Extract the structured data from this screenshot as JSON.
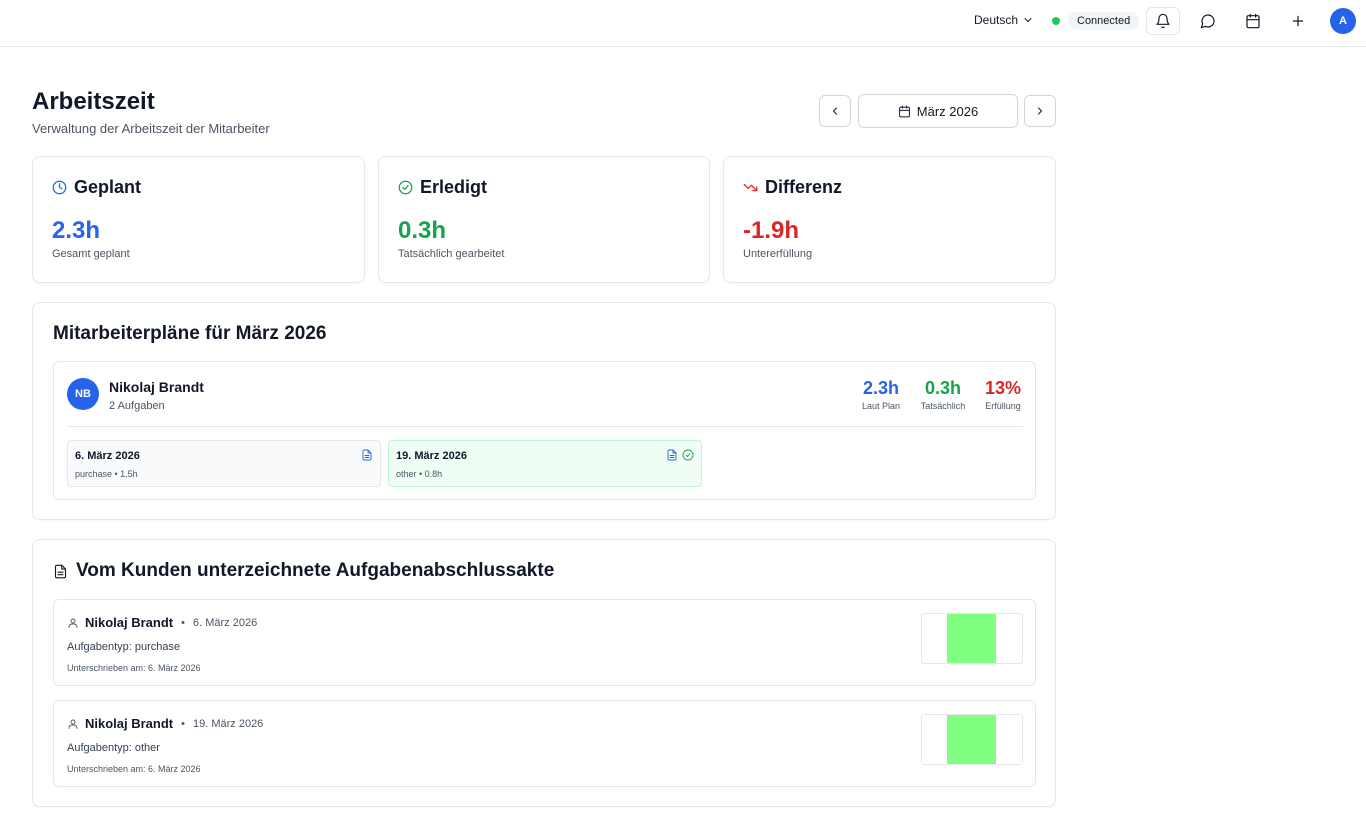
{
  "topbar": {
    "language": "Deutsch",
    "connection_status": "Connected",
    "user_initial": "A"
  },
  "header": {
    "title": "Arbeitszeit",
    "subtitle": "Verwaltung der Arbeitszeit der Mitarbeiter",
    "month": "März 2026"
  },
  "stats": [
    {
      "icon": "clock-icon",
      "title": "Geplant",
      "value": "2.3h",
      "label": "Gesamt geplant",
      "color": "#2563eb"
    },
    {
      "icon": "check-circle-icon",
      "title": "Erledigt",
      "value": "0.3h",
      "label": "Tatsächlich gearbeitet",
      "color": "#16a34a"
    },
    {
      "icon": "trending-down-icon",
      "title": "Differenz",
      "value": "-1.9h",
      "label": "Untererfüllung",
      "color": "#dc2626"
    }
  ],
  "plans": {
    "title": "Mitarbeiterpläne für März 2026",
    "employee": {
      "initials": "NB",
      "name": "Nikolaj Brandt",
      "tasks_count": "2 Aufgaben",
      "planned": {
        "value": "2.3h",
        "label": "Laut Plan"
      },
      "actual": {
        "value": "0.3h",
        "label": "Tatsächlich"
      },
      "fulfillment": {
        "value": "13%",
        "label": "Erfüllung"
      }
    },
    "tasks": [
      {
        "date": "6. März 2026",
        "meta": "purchase • 1.5h",
        "completed": false
      },
      {
        "date": "19. März 2026",
        "meta": "other • 0.8h",
        "completed": true
      }
    ]
  },
  "signed": {
    "title": "Vom Kunden unterzeichnete Aufgabenabschlussakte",
    "records": [
      {
        "name": "Nikolaj Brandt",
        "date": "6. März 2026",
        "type": "Aufgabentyp: purchase",
        "signed_at": "Unterschrieben am: 6. März 2026"
      },
      {
        "name": "Nikolaj Brandt",
        "date": "19. März 2026",
        "type": "Aufgabentyp: other",
        "signed_at": "Unterschrieben am: 6. März 2026"
      }
    ]
  },
  "colors": {
    "accent": "#2563eb",
    "success": "#16a34a",
    "danger": "#dc2626",
    "signature_fill": "#80ff80"
  }
}
